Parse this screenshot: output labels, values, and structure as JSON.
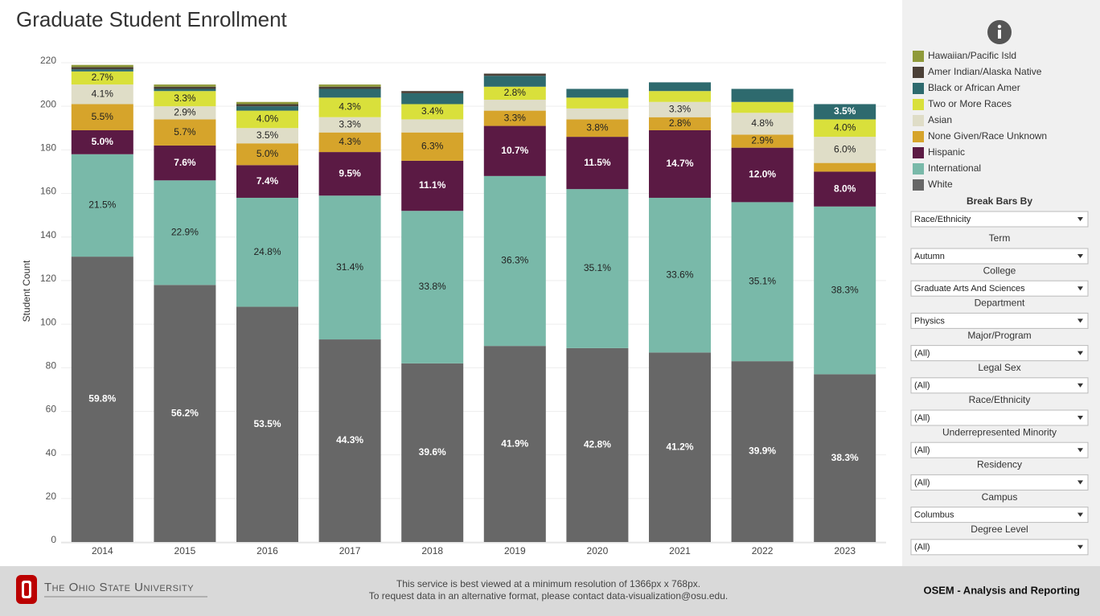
{
  "chart_data": {
    "type": "stacked-bar",
    "title": "Graduate Student Enrollment",
    "y_label": "Student Count",
    "categories": [
      "2014",
      "2015",
      "2016",
      "2017",
      "2018",
      "2019",
      "2020",
      "2021",
      "2022",
      "2023"
    ],
    "ylim": [
      0,
      220
    ],
    "yticks": [
      0,
      20,
      40,
      60,
      80,
      100,
      120,
      140,
      160,
      180,
      200,
      220
    ],
    "grid": true,
    "series": [
      {
        "name": "White",
        "color": "#676767",
        "values": [
          131,
          118,
          108,
          93,
          82,
          90,
          89,
          87,
          83,
          77
        ],
        "share_labels": [
          "59.8%",
          "56.2%",
          "53.5%",
          "44.3%",
          "39.6%",
          "41.9%",
          "42.8%",
          "41.2%",
          "39.9%",
          "38.3%"
        ]
      },
      {
        "name": "International",
        "color": "#79b9a9",
        "values": [
          47,
          48,
          50,
          66,
          70,
          78,
          73,
          71,
          73,
          77
        ],
        "share_labels": [
          "21.5%",
          "22.9%",
          "24.8%",
          "31.4%",
          "33.8%",
          "36.3%",
          "35.1%",
          "33.6%",
          "35.1%",
          "38.3%"
        ]
      },
      {
        "name": "Hispanic",
        "color": "#5b1a44",
        "values": [
          11,
          16,
          15,
          20,
          23,
          23,
          24,
          31,
          25,
          16
        ],
        "share_labels": [
          "5.0%",
          "7.6%",
          "7.4%",
          "9.5%",
          "11.1%",
          "10.7%",
          "11.5%",
          "14.7%",
          "12.0%",
          "8.0%"
        ]
      },
      {
        "name": "None Given/Race Unknown",
        "color": "#d6a42b",
        "values": [
          12,
          12,
          10,
          9,
          13,
          7,
          8,
          6,
          6,
          4
        ],
        "share_labels": [
          "5.5%",
          "5.7%",
          "5.0%",
          "4.3%",
          "6.3%",
          "3.3%",
          "3.8%",
          "2.8%",
          "2.9%",
          null
        ]
      },
      {
        "name": "Asian",
        "color": "#dfddc7",
        "values": [
          9,
          6,
          7,
          7,
          6,
          5,
          5,
          7,
          10,
          12
        ],
        "share_labels": [
          "4.1%",
          "2.9%",
          "3.5%",
          "3.3%",
          null,
          null,
          null,
          "3.3%",
          "4.8%",
          "6.0%"
        ]
      },
      {
        "name": "Two or More Races",
        "color": "#d9e03b",
        "values": [
          6,
          7,
          8,
          9,
          7,
          6,
          5,
          5,
          5,
          8
        ],
        "share_labels": [
          "2.7%",
          "3.3%",
          "4.0%",
          "4.3%",
          "3.4%",
          "2.8%",
          null,
          null,
          null,
          "4.0%"
        ]
      },
      {
        "name": "Black or African Amer",
        "color": "#2e6a6e",
        "values": [
          1,
          1,
          2,
          4,
          5,
          5,
          4,
          4,
          6,
          7
        ],
        "share_labels": [
          null,
          null,
          null,
          null,
          null,
          null,
          null,
          null,
          null,
          "3.5%"
        ]
      },
      {
        "name": "Amer Indian/Alaska Native",
        "color": "#4b4037",
        "values": [
          1,
          1,
          1,
          1,
          1,
          1,
          0,
          0,
          0,
          0
        ],
        "share_labels": [
          null,
          null,
          null,
          null,
          null,
          null,
          null,
          null,
          null,
          null
        ]
      },
      {
        "name": "Hawaiian/Pacific Isld",
        "color": "#8f9a3a",
        "values": [
          1,
          1,
          1,
          1,
          0,
          0,
          0,
          0,
          0,
          0
        ],
        "share_labels": [
          null,
          null,
          null,
          null,
          null,
          null,
          null,
          null,
          null,
          null
        ]
      }
    ]
  },
  "filters": [
    {
      "label": "Break Bars By",
      "value": "Race/Ethnicity"
    },
    {
      "label": "Term",
      "value": "Autumn"
    },
    {
      "label": "College",
      "value": "Graduate Arts And Sciences"
    },
    {
      "label": "Department",
      "value": "Physics"
    },
    {
      "label": "Major/Program",
      "value": "(All)"
    },
    {
      "label": "Legal Sex",
      "value": "(All)"
    },
    {
      "label": "Race/Ethnicity",
      "value": "(All)"
    },
    {
      "label": "Underrepresented Minority",
      "value": "(All)"
    },
    {
      "label": "Residency",
      "value": "(All)"
    },
    {
      "label": "Campus",
      "value": "Columbus"
    },
    {
      "label": "Degree Level",
      "value": "(All)"
    }
  ],
  "footer": {
    "university": "The Ohio State University",
    "notes": [
      "This service is best viewed at a minimum resolution of 1366px x 768px.",
      "To request data in an alternative format, please contact data-visualization@osu.edu."
    ],
    "credit": "OSEM - Analysis and Reporting"
  }
}
